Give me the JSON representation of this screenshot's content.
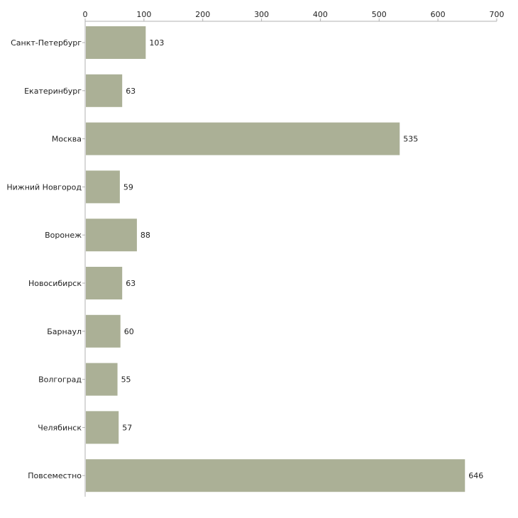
{
  "chart_data": {
    "type": "bar",
    "orientation": "horizontal",
    "title": "",
    "xlabel": "",
    "ylabel": "",
    "xlim": [
      0,
      700
    ],
    "x_ticks": [
      0,
      100,
      200,
      300,
      400,
      500,
      600,
      700
    ],
    "x_tick_labels": [
      "0",
      "100",
      "200",
      "300",
      "400",
      "500",
      "600",
      "700"
    ],
    "x_axis_position": "top",
    "grid": false,
    "categories": [
      "Санкт-Петербург",
      "Екатеринбург",
      "Москва",
      "Нижний Новгород",
      "Воронеж",
      "Новосибирск",
      "Барнаул",
      "Волгоград",
      "Челябинск",
      "Повсеместно"
    ],
    "values": [
      103,
      63,
      535,
      59,
      88,
      63,
      60,
      55,
      57,
      646
    ],
    "value_labels": [
      "103",
      "63",
      "535",
      "59",
      "88",
      "63",
      "60",
      "55",
      "57",
      "646"
    ],
    "bar_color": "#abb096",
    "axis_color": "#b0b0b0",
    "text_color": "#222222"
  }
}
